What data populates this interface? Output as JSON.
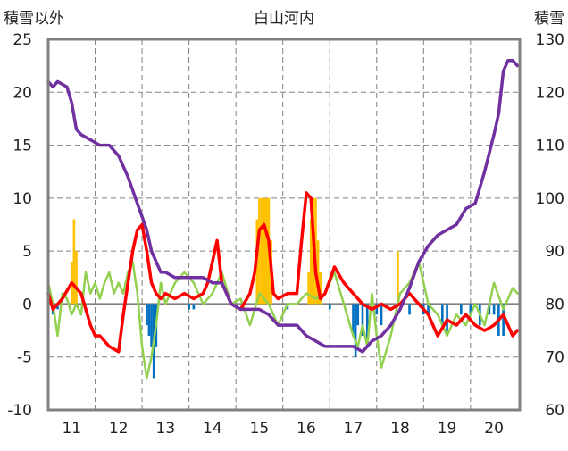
{
  "chart_data": {
    "type": "line",
    "title": "白山河内",
    "y_left_label": "積雪以外",
    "y_right_label": "積雪",
    "y_left_range": [
      -10,
      25
    ],
    "y_left_ticks": [
      -10,
      -5,
      0,
      5,
      10,
      15,
      20,
      25
    ],
    "y_right_range": [
      60,
      130
    ],
    "y_right_ticks": [
      60,
      70,
      80,
      90,
      100,
      110,
      120,
      130
    ],
    "x_range": [
      10.5,
      20.55
    ],
    "x_ticks": [
      11,
      12,
      13,
      14,
      15,
      16,
      17,
      18,
      19,
      20
    ],
    "grid": {
      "vertical_dashed": true,
      "horizontal_dashed": true
    },
    "colors": {
      "snow_depth": "#7030A0",
      "temperature": "#FF0000",
      "temp_change": "#92D050",
      "precip": "#FFC000",
      "snow_change": "#0070C0",
      "zero_line": "#808080",
      "frame": "#808080"
    },
    "series": [
      {
        "key": "snow_depth",
        "axis": "right",
        "kind": "line",
        "x": [
          10.5,
          10.6,
          10.7,
          10.9,
          11.0,
          11.1,
          11.2,
          11.4,
          11.6,
          11.8,
          12.0,
          12.2,
          12.4,
          12.6,
          12.7,
          12.8,
          12.9,
          13.0,
          13.2,
          13.4,
          13.6,
          13.8,
          14.0,
          14.2,
          14.4,
          14.6,
          14.8,
          15.0,
          15.2,
          15.4,
          15.6,
          15.8,
          16.0,
          16.2,
          16.4,
          16.6,
          16.8,
          17.0,
          17.2,
          17.4,
          17.6,
          17.8,
          18.0,
          18.2,
          18.4,
          18.6,
          18.8,
          19.0,
          19.2,
          19.4,
          19.6,
          19.8,
          20.0,
          20.1,
          20.2,
          20.3,
          20.4,
          20.5
        ],
        "values": [
          122,
          121,
          122,
          121,
          118,
          113,
          112,
          111,
          110,
          110,
          108,
          104,
          99,
          94,
          90,
          88,
          86,
          86,
          85,
          85,
          85,
          85,
          84,
          84,
          80,
          79,
          79,
          79,
          78,
          76,
          76,
          76,
          74,
          73,
          72,
          72,
          72,
          72,
          71,
          73,
          74,
          76,
          79,
          83,
          88,
          91,
          93,
          94,
          95,
          98,
          99,
          105,
          112,
          116,
          124,
          126,
          126,
          125
        ]
      },
      {
        "key": "temperature",
        "axis": "left",
        "kind": "line",
        "x": [
          10.5,
          10.6,
          10.8,
          11.0,
          11.2,
          11.4,
          11.5,
          11.6,
          11.8,
          12.0,
          12.1,
          12.2,
          12.3,
          12.4,
          12.5,
          12.6,
          12.7,
          12.8,
          12.9,
          13.0,
          13.2,
          13.4,
          13.6,
          13.8,
          13.9,
          14.0,
          14.1,
          14.2,
          14.4,
          14.6,
          14.8,
          14.9,
          15.0,
          15.1,
          15.2,
          15.3,
          15.4,
          15.6,
          15.8,
          15.9,
          16.0,
          16.1,
          16.2,
          16.3,
          16.4,
          16.6,
          16.8,
          17.0,
          17.2,
          17.4,
          17.6,
          17.8,
          18.0,
          18.2,
          18.4,
          18.6,
          18.8,
          19.0,
          19.2,
          19.4,
          19.6,
          19.8,
          20.0,
          20.2,
          20.4,
          20.5
        ],
        "values": [
          1,
          -0.5,
          0.5,
          2,
          1,
          -2,
          -3,
          -3,
          -4,
          -4.5,
          -1,
          2,
          5,
          7,
          7.5,
          5,
          2,
          1,
          0.5,
          1,
          0.5,
          1,
          0.5,
          1,
          2,
          4,
          6,
          2,
          0,
          -0.5,
          1,
          3,
          7,
          7.5,
          6,
          1,
          0.5,
          1,
          1,
          6,
          10.5,
          10,
          3,
          0.5,
          1,
          3.5,
          2,
          1,
          0,
          -0.5,
          0,
          -0.5,
          0,
          1,
          0,
          -1,
          -3,
          -1.5,
          -2,
          -1,
          -2,
          -2.5,
          -2,
          -1,
          -3,
          -2.5
        ]
      },
      {
        "key": "temp_change",
        "axis": "left",
        "kind": "line",
        "x": [
          10.5,
          10.6,
          10.7,
          10.8,
          10.9,
          11.0,
          11.1,
          11.2,
          11.3,
          11.4,
          11.5,
          11.6,
          11.7,
          11.8,
          11.9,
          12.0,
          12.1,
          12.2,
          12.3,
          12.4,
          12.5,
          12.6,
          12.7,
          12.8,
          12.9,
          13.0,
          13.1,
          13.2,
          13.4,
          13.6,
          13.8,
          14.0,
          14.2,
          14.4,
          14.6,
          14.8,
          15.0,
          15.2,
          15.4,
          15.6,
          15.8,
          16.0,
          16.2,
          16.4,
          16.6,
          16.8,
          17.0,
          17.1,
          17.2,
          17.3,
          17.4,
          17.5,
          17.6,
          17.8,
          18.0,
          18.2,
          18.4,
          18.6,
          18.8,
          19.0,
          19.2,
          19.4,
          19.6,
          19.8,
          20.0,
          20.2,
          20.4,
          20.5
        ],
        "values": [
          2,
          0,
          -3,
          1,
          0.5,
          -1,
          0,
          -1,
          3,
          1,
          2,
          0.5,
          2,
          3,
          1,
          2,
          1,
          3,
          4,
          1,
          -4,
          -7,
          -5,
          -2,
          2,
          0,
          1,
          2,
          3,
          2,
          0,
          1,
          3,
          0,
          0.5,
          -2,
          1,
          0,
          -2,
          0,
          0,
          1,
          0.5,
          1,
          3,
          0,
          -3,
          -4,
          -2,
          -4,
          1,
          -3,
          -6,
          -3,
          1,
          2,
          4,
          0,
          -1,
          -3,
          -1,
          -2,
          0,
          -2,
          2,
          -0.5,
          1.5,
          1
        ]
      },
      {
        "key": "precip",
        "axis": "left",
        "kind": "bar",
        "x": [
          11.0,
          11.05,
          11.1,
          14.95,
          15.0,
          15.05,
          15.1,
          15.15,
          15.2,
          15.25,
          16.05,
          16.1,
          16.15,
          16.2,
          16.25,
          16.3,
          17.95
        ],
        "values": [
          4,
          8,
          5,
          8,
          10,
          10,
          10,
          10,
          10,
          6,
          3,
          8,
          10,
          10,
          6,
          3,
          5
        ]
      },
      {
        "key": "snow_change",
        "axis": "left",
        "kind": "bar",
        "x": [
          10.6,
          10.7,
          12.6,
          12.65,
          12.7,
          12.75,
          12.8,
          13.5,
          13.6,
          15.6,
          16.5,
          17.0,
          17.05,
          17.1,
          17.2,
          17.3,
          17.5,
          17.6,
          18.2,
          18.5,
          18.6,
          18.9,
          19.0,
          19.3,
          19.5,
          19.7,
          19.9,
          20.0,
          20.1,
          20.2
        ],
        "values": [
          -1,
          -0.5,
          -2,
          -3,
          -4,
          -7,
          -4,
          -0.5,
          -0.5,
          -0.5,
          -0.5,
          -3,
          -5,
          -2,
          -3,
          -4,
          -1,
          -2,
          -1,
          -1,
          -1,
          -2,
          -3,
          -1,
          -1,
          -2,
          -1,
          -1,
          -3,
          -3
        ]
      }
    ]
  }
}
